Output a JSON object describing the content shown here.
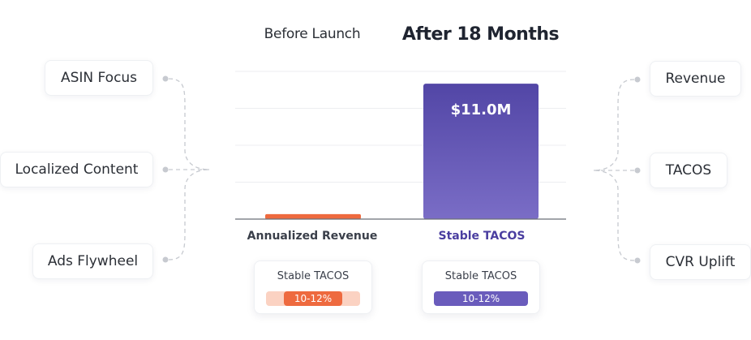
{
  "colors": {
    "before_bar": "#ee6a3f",
    "after_bar_top": "#5246a6",
    "after_bar_bottom": "#7a6dc6",
    "before_range_bg": "#fbd2c2",
    "after_range": "#6a5cbc",
    "connector": "#c7cad0"
  },
  "left_inputs": [
    "ASIN Focus",
    "Localized Content",
    "Ads Flywheel"
  ],
  "right_outputs": [
    "Revenue",
    "TACOS",
    "CVR Uplift"
  ],
  "columns": {
    "before_title": "Before Launch",
    "after_title": "After 18 Months"
  },
  "chart_data": {
    "type": "bar",
    "categories": [
      "Annualized Revenue",
      "Stable TACOS"
    ],
    "values": [
      0.4,
      11.0
    ],
    "value_unit": "$M",
    "data_labels": [
      "",
      "$11.0M"
    ],
    "ylim": [
      0,
      12
    ],
    "grid": true,
    "title": "",
    "xlabel": "",
    "ylabel": ""
  },
  "cards": [
    {
      "title": "Stable TACOS",
      "range_label": "10-12%"
    },
    {
      "title": "Stable TACOS",
      "range_label": "10-12%"
    }
  ]
}
